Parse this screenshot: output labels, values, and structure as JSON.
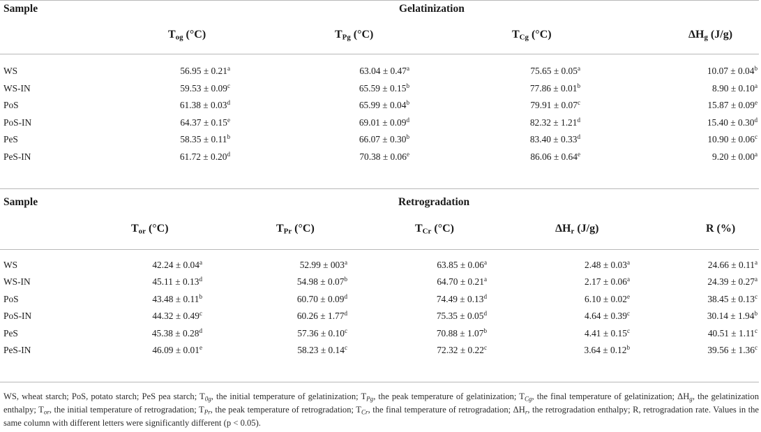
{
  "gelatinization": {
    "sample_label": "Sample",
    "section_title": "Gelatinization",
    "columns": [
      {
        "main": "T",
        "sub": "og",
        "unit": " (°C)"
      },
      {
        "main": "T",
        "sub": "Pg",
        "unit": " (°C)"
      },
      {
        "main": "T",
        "sub": "Cg",
        "unit": " (°C)"
      },
      {
        "main": "ΔH",
        "sub": "g",
        "unit": " (J/g)"
      }
    ],
    "rows": [
      {
        "sample": "WS",
        "cells": [
          {
            "v": "56.95 ± 0.21",
            "s": "a"
          },
          {
            "v": "63.04 ± 0.47",
            "s": "a"
          },
          {
            "v": "75.65 ± 0.05",
            "s": "a"
          },
          {
            "v": "10.07 ± 0.04",
            "s": "b"
          }
        ]
      },
      {
        "sample": "WS-IN",
        "cells": [
          {
            "v": "59.53 ± 0.09",
            "s": "c"
          },
          {
            "v": "65.59 ± 0.15",
            "s": "b"
          },
          {
            "v": "77.86 ± 0.01",
            "s": "b"
          },
          {
            "v": "8.90 ± 0.10",
            "s": "a"
          }
        ]
      },
      {
        "sample": "PoS",
        "cells": [
          {
            "v": "61.38 ± 0.03",
            "s": "d"
          },
          {
            "v": "65.99 ± 0.04",
            "s": "b"
          },
          {
            "v": "79.91 ± 0.07",
            "s": "c"
          },
          {
            "v": "15.87 ± 0.09",
            "s": "e"
          }
        ]
      },
      {
        "sample": "PoS-IN",
        "cells": [
          {
            "v": "64.37 ± 0.15",
            "s": "e"
          },
          {
            "v": "69.01 ± 0.09",
            "s": "d"
          },
          {
            "v": "82.32 ± 1.21",
            "s": "d"
          },
          {
            "v": "15.40 ± 0.30",
            "s": "d"
          }
        ]
      },
      {
        "sample": "PeS",
        "cells": [
          {
            "v": "58.35 ± 0.11",
            "s": "b"
          },
          {
            "v": "66.07 ± 0.30",
            "s": "b"
          },
          {
            "v": "83.40 ± 0.33",
            "s": "d"
          },
          {
            "v": "10.90 ± 0.06",
            "s": "c"
          }
        ]
      },
      {
        "sample": "PeS-IN",
        "cells": [
          {
            "v": "61.72 ± 0.20",
            "s": "d"
          },
          {
            "v": "70.38 ± 0.06",
            "s": "e"
          },
          {
            "v": "86.06 ± 0.64",
            "s": "e"
          },
          {
            "v": "9.20 ± 0.00",
            "s": "a"
          }
        ]
      }
    ]
  },
  "retrogradation": {
    "sample_label": "Sample",
    "section_title": "Retrogradation",
    "columns": [
      {
        "main": "T",
        "sub": "or",
        "unit": " (°C)"
      },
      {
        "main": "T",
        "sub": "Pr",
        "unit": " (°C)"
      },
      {
        "main": "T",
        "sub": "Cr",
        "unit": " (°C)"
      },
      {
        "main": "ΔH",
        "sub": "r",
        "unit": " (J/g)"
      },
      {
        "main": "R (%)",
        "sub": "",
        "unit": ""
      }
    ],
    "rows": [
      {
        "sample": "WS",
        "cells": [
          {
            "v": "42.24 ± 0.04",
            "s": "a"
          },
          {
            "v": "52.99 ± 003",
            "s": "a"
          },
          {
            "v": "63.85 ± 0.06",
            "s": "a"
          },
          {
            "v": "2.48 ± 0.03",
            "s": "a"
          },
          {
            "v": "24.66 ± 0.11",
            "s": "a"
          }
        ]
      },
      {
        "sample": "WS-IN",
        "cells": [
          {
            "v": "45.11 ± 0.13",
            "s": "d"
          },
          {
            "v": "54.98 ± 0.07",
            "s": "b"
          },
          {
            "v": "64.70 ± 0.21",
            "s": "a"
          },
          {
            "v": "2.17 ± 0.06",
            "s": "a"
          },
          {
            "v": "24.39 ± 0.27",
            "s": "a"
          }
        ]
      },
      {
        "sample": "PoS",
        "cells": [
          {
            "v": "43.48 ± 0.11",
            "s": "b"
          },
          {
            "v": "60.70 ± 0.09",
            "s": "d"
          },
          {
            "v": "74.49 ± 0.13",
            "s": "d"
          },
          {
            "v": "6.10 ± 0.02",
            "s": "e"
          },
          {
            "v": "38.45 ± 0.13",
            "s": "c"
          }
        ]
      },
      {
        "sample": "PoS-IN",
        "cells": [
          {
            "v": "44.32 ± 0.49",
            "s": "c"
          },
          {
            "v": "60.26 ± 1.77",
            "s": "d"
          },
          {
            "v": "75.35 ± 0.05",
            "s": "d"
          },
          {
            "v": "4.64 ± 0.39",
            "s": "c"
          },
          {
            "v": "30.14 ± 1.94",
            "s": "b"
          }
        ]
      },
      {
        "sample": "PeS",
        "cells": [
          {
            "v": "45.38 ± 0.28",
            "s": "d"
          },
          {
            "v": "57.36 ± 0.10",
            "s": "c"
          },
          {
            "v": "70.88 ± 1.07",
            "s": "b"
          },
          {
            "v": "4.41 ± 0.15",
            "s": "c"
          },
          {
            "v": "40.51 ± 1.11",
            "s": "c"
          }
        ]
      },
      {
        "sample": "PeS-IN",
        "cells": [
          {
            "v": "46.09 ± 0.01",
            "s": "e"
          },
          {
            "v": "58.23 ± 0.14",
            "s": "c"
          },
          {
            "v": "72.32 ± 0.22",
            "s": "c"
          },
          {
            "v": "3.64 ± 0.12",
            "s": "b"
          },
          {
            "v": "39.56 ± 1.36",
            "s": "c"
          }
        ]
      }
    ]
  },
  "footnote": {
    "t1": "WS, wheat starch; PoS, potato starch; PeS pea starch; T",
    "s1": "0g",
    "t2": ", the initial temperature of gelatinization; T",
    "s2": "Pg",
    "t3": ", the peak temperature of gelatinization; T",
    "s3": "Cg",
    "t4": ", the final temperature of gelatinization; ΔH",
    "s4": "g",
    "t5": ", the gelatinization enthalpy; T",
    "s5": "or",
    "t6": ", the initial temperature of retrogradation; T",
    "s6": "Pr",
    "t7": ", the peak temperature of retrogradation; T",
    "s7": "Cr",
    "t8": ", the final temperature of retrogradation; ΔH",
    "s8": "r",
    "t9": ", the retrogradation enthalpy; R, retrogradation rate. Values in the same column with different letters were significantly different (p < 0.05)."
  }
}
